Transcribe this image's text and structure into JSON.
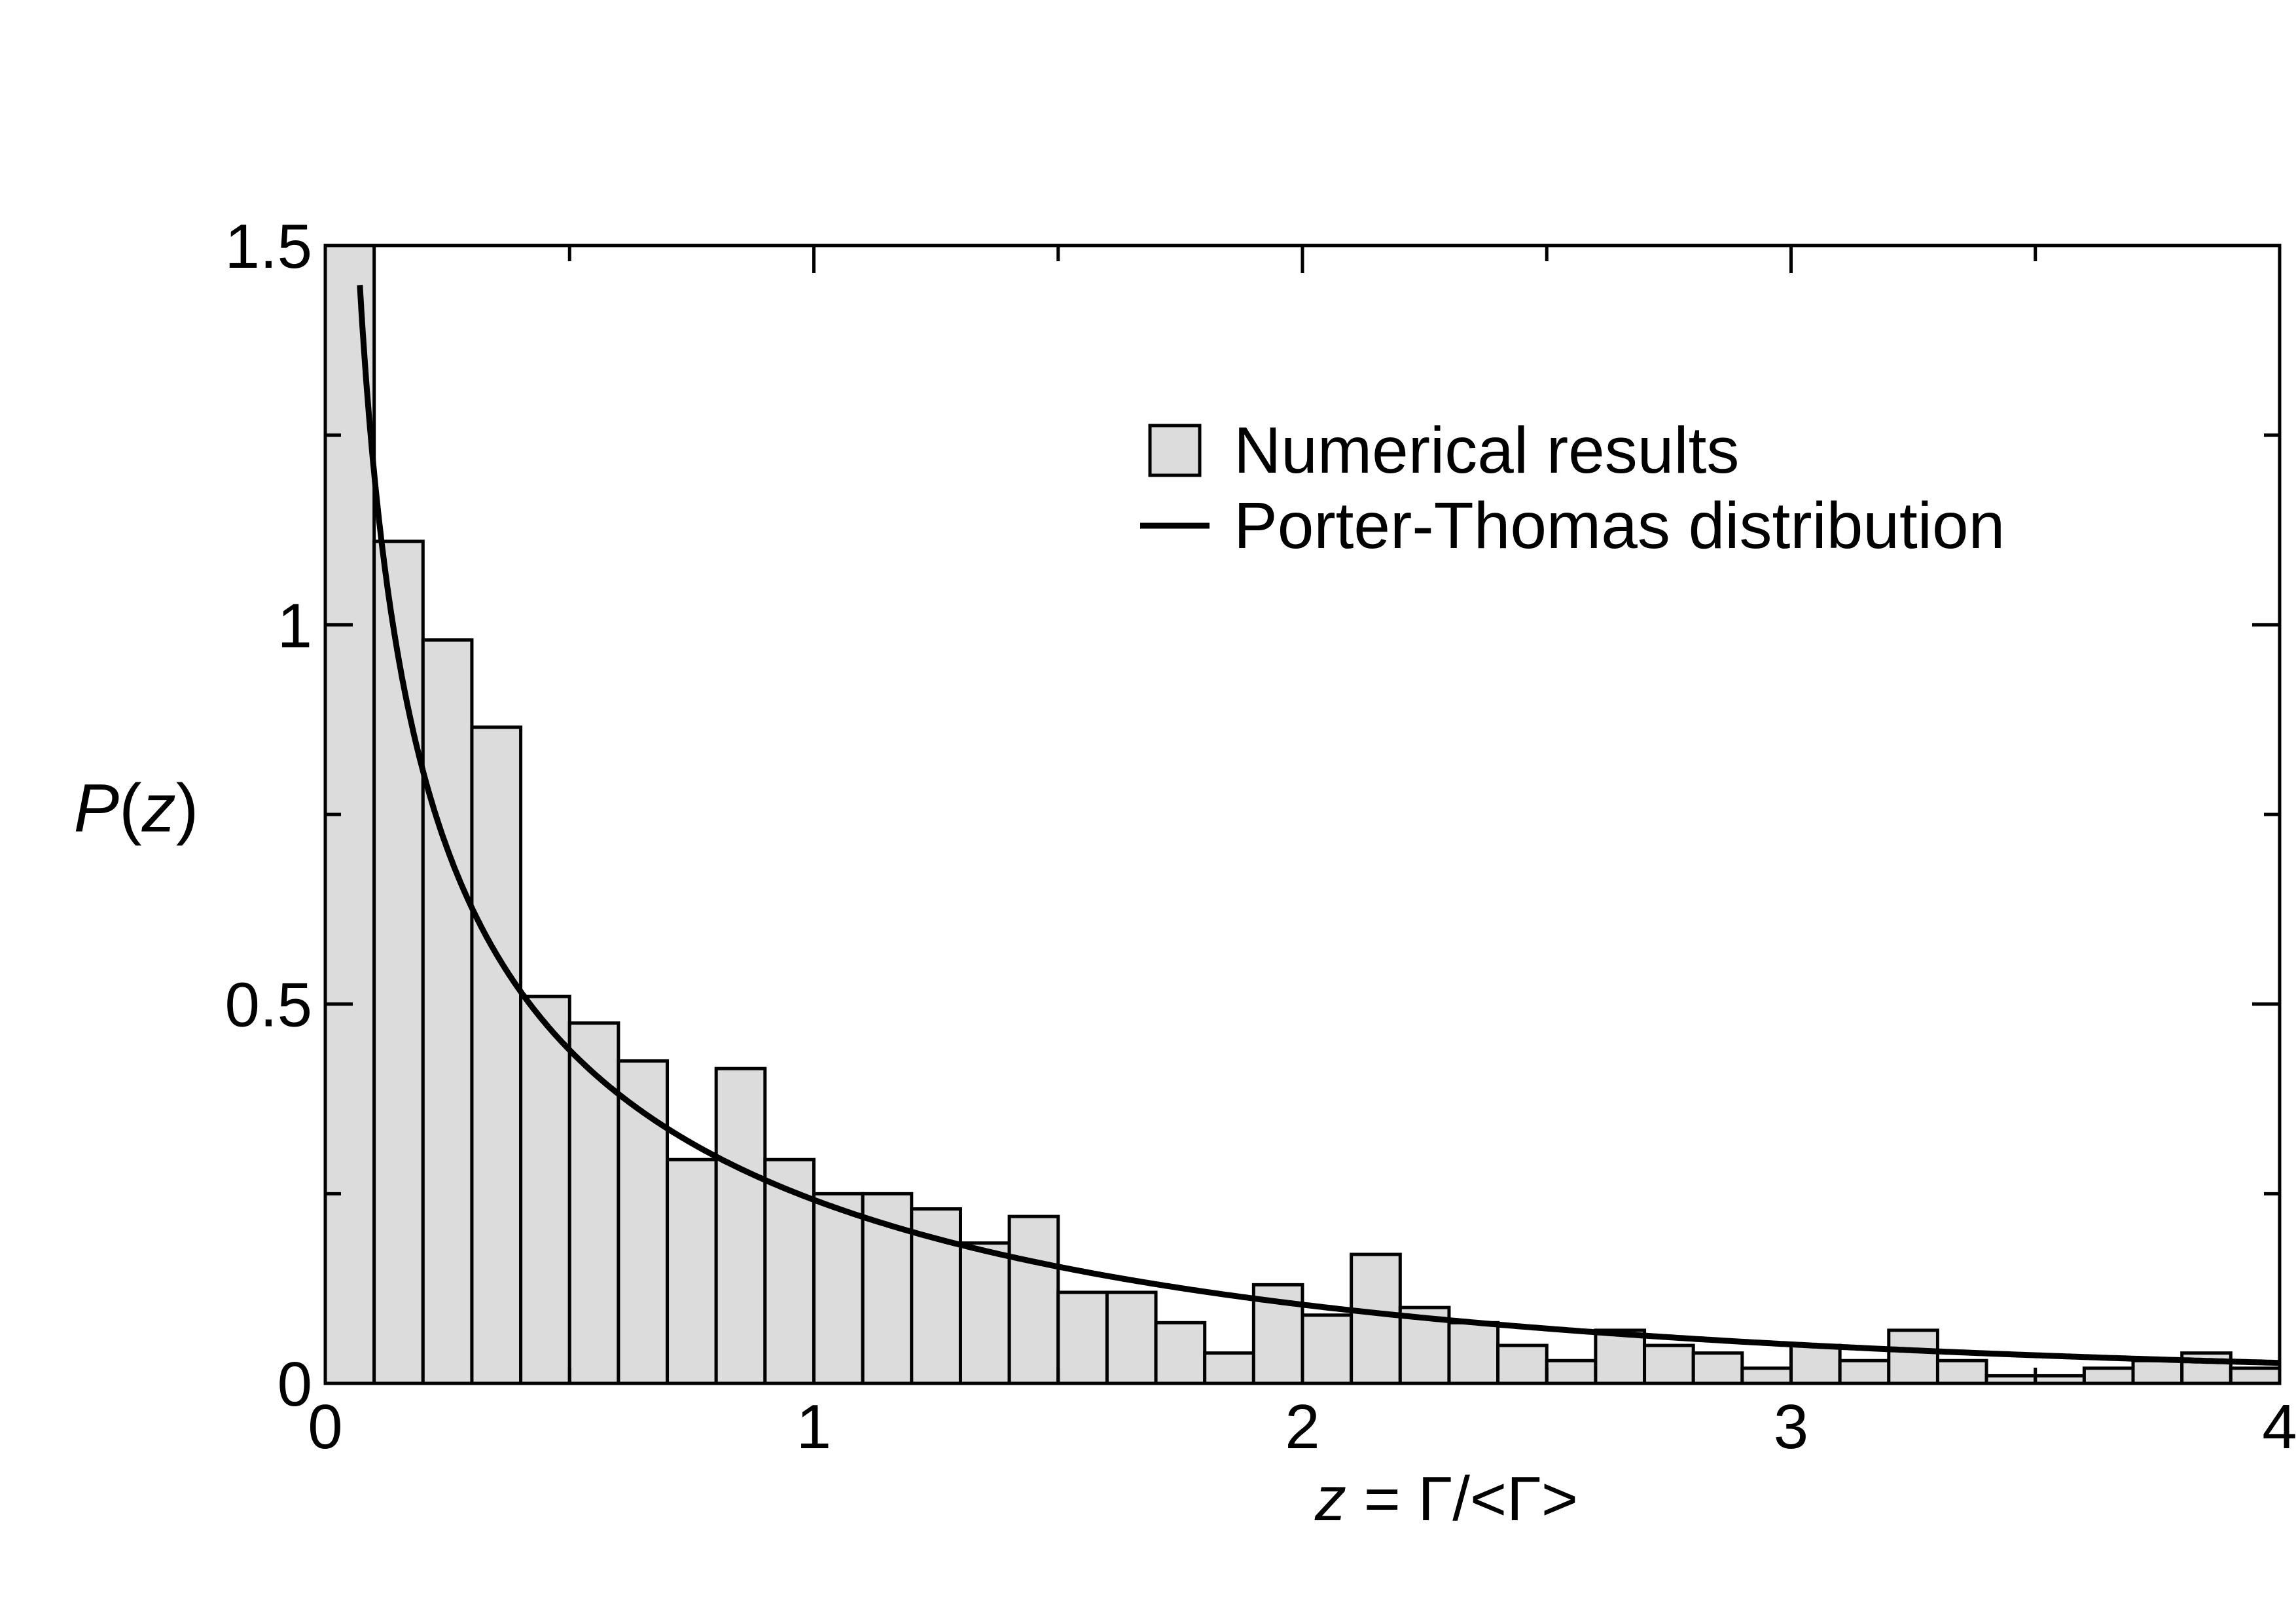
{
  "chart_data": {
    "type": "bar",
    "title": "",
    "xlabel": {
      "var": "z",
      "rest": " = Γ/<Γ>"
    },
    "ylabel": {
      "var": "P",
      "open": "(",
      "arg": "z",
      "close": ")"
    },
    "xlim": [
      0,
      4
    ],
    "ylim": [
      0,
      1.5
    ],
    "xticks": [
      "0",
      "1",
      "2",
      "3",
      "4"
    ],
    "yticks": [
      "0",
      "0.5",
      "1",
      "1.5"
    ],
    "grid": false,
    "legend_position": "top-right",
    "bin_width": 0.1,
    "series": [
      {
        "name": "Numerical results",
        "kind": "histogram",
        "color": "#dcdcdc",
        "edge_color": "#000000",
        "x": [
          0.0,
          0.1,
          0.2,
          0.3,
          0.4,
          0.5,
          0.6,
          0.7,
          0.8,
          0.9,
          1.0,
          1.1,
          1.2,
          1.3,
          1.4,
          1.5,
          1.6,
          1.7,
          1.8,
          1.9,
          2.0,
          2.1,
          2.2,
          2.3,
          2.4,
          2.5,
          2.6,
          2.7,
          2.8,
          2.9,
          3.0,
          3.1,
          3.2,
          3.3,
          3.4,
          3.5,
          3.6,
          3.7,
          3.8,
          3.9
        ],
        "values": [
          1.5,
          1.11,
          0.98,
          0.865,
          0.51,
          0.475,
          0.425,
          0.295,
          0.415,
          0.295,
          0.25,
          0.25,
          0.23,
          0.185,
          0.22,
          0.12,
          0.12,
          0.08,
          0.04,
          0.13,
          0.09,
          0.17,
          0.1,
          0.08,
          0.05,
          0.03,
          0.07,
          0.05,
          0.04,
          0.02,
          0.05,
          0.03,
          0.07,
          0.03,
          0.01,
          0.01,
          0.02,
          0.03,
          0.04,
          0.02
        ]
      },
      {
        "name": "Porter-Thomas distribution",
        "kind": "line",
        "color": "#000000",
        "formula": "P(z) = exp(-z/2) / sqrt(2*pi*z)"
      }
    ]
  }
}
